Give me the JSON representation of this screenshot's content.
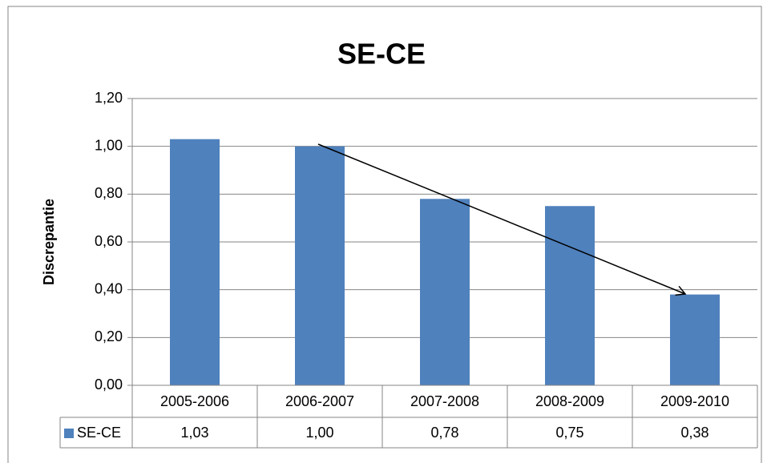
{
  "chart_data": {
    "type": "bar",
    "title": "SE-CE",
    "y_label": "Discrepantie",
    "categories": [
      "2005-2006",
      "2006-2007",
      "2007-2008",
      "2008-2009",
      "2009-2010"
    ],
    "series": [
      {
        "name": "SE-CE",
        "color": "#4f81bd",
        "values": [
          1.03,
          1.0,
          0.78,
          0.75,
          0.38
        ],
        "value_labels": [
          "1,03",
          "1,00",
          "0,78",
          "0,75",
          "0,38"
        ]
      }
    ],
    "ylim": [
      0,
      1.2
    ],
    "yticks": [
      {
        "value": 0,
        "label": "0,00"
      },
      {
        "value": 0.2,
        "label": "0,20"
      },
      {
        "value": 0.4,
        "label": "0,40"
      },
      {
        "value": 0.6,
        "label": "0,60"
      },
      {
        "value": 0.8,
        "label": "0,80"
      },
      {
        "value": 1.0,
        "label": "1,00"
      },
      {
        "value": 1.2,
        "label": "1,20"
      }
    ],
    "grid": true,
    "data_table": true
  }
}
